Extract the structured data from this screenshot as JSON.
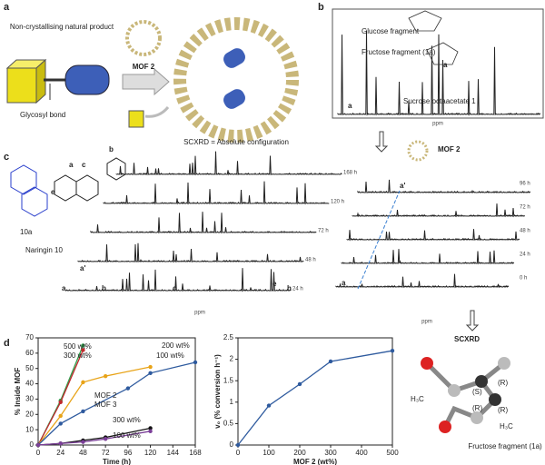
{
  "panels": {
    "a": {
      "letter": "a",
      "product": "Non-crystallising natural product",
      "mof": "MOF 2",
      "bond": "Glycosyl bond",
      "result": "SCXRD = Absolute configuration"
    },
    "b": {
      "letter": "b",
      "glucose": "Glucose fragment",
      "fructose": "Fructose fragment (1a)",
      "compound": "Sucrose octaacetate 1",
      "peak": "a",
      "ring": "a",
      "axis": "ppm"
    },
    "c": {
      "letter": "c",
      "compound": "Naringin 10",
      "fragment": "10a",
      "sites": [
        "a",
        "b",
        "c",
        "e"
      ],
      "peaks": [
        "a",
        "a'",
        "b",
        "c",
        "e",
        "h"
      ],
      "times": [
        "168 h",
        "120 h",
        "72 h",
        "48 h",
        "24 h"
      ],
      "axis": "ppm",
      "mof": "MOF 2",
      "times2": [
        "96 h",
        "72 h",
        "48 h",
        "24 h",
        "0 h"
      ],
      "peak2": "a'",
      "peak2b": "a"
    },
    "e": {
      "method": "SCXRD",
      "s": "(S)",
      "r1": "(R)",
      "r2": "(R)",
      "r3": "(R)",
      "methyl1": "H₃C",
      "methyl2": "H₃C",
      "fragment": "Fructose fragment (1a)"
    },
    "d": {
      "letter": "d"
    }
  },
  "chart_data": [
    {
      "type": "line",
      "xlabel": "Time (h)",
      "ylabel": "% Inside MOF",
      "xlim": [
        0,
        168
      ],
      "xticks": [
        0,
        24,
        48,
        72,
        96,
        120,
        144,
        168
      ],
      "ylim": [
        0,
        70
      ],
      "yticks": [
        0,
        10,
        20,
        30,
        40,
        50,
        60,
        70
      ],
      "annotations": [
        "MOF 2",
        "MOF 3"
      ],
      "series": [
        {
          "name": "500 wt%",
          "color": "#2e9e4a",
          "x": [
            0,
            24,
            48
          ],
          "values": [
            0,
            29,
            65
          ]
        },
        {
          "name": "300 wt%",
          "color": "#c0282d",
          "x": [
            0,
            24,
            48
          ],
          "values": [
            0,
            28,
            62
          ]
        },
        {
          "name": "200 wt%",
          "color": "#e8a317",
          "x": [
            0,
            24,
            48,
            72,
            120
          ],
          "values": [
            0,
            19,
            41,
            45,
            51
          ]
        },
        {
          "name": "100 wt%",
          "color": "#2e5a9e",
          "x": [
            0,
            24,
            48,
            96,
            120,
            168
          ],
          "values": [
            0,
            14,
            22,
            37,
            47,
            54
          ]
        },
        {
          "name": "300 wt%",
          "color": "#111111",
          "x": [
            0,
            24,
            48,
            72,
            120
          ],
          "values": [
            0,
            1,
            3,
            5,
            11
          ]
        },
        {
          "name": "100 wt%",
          "color": "#7b3f98",
          "x": [
            0,
            24,
            48,
            72,
            120
          ],
          "values": [
            0,
            1,
            2,
            4,
            9
          ]
        }
      ]
    },
    {
      "type": "scatter",
      "xlabel": "MOF 2 (wt%)",
      "ylabel": "v₀ (% conversion h⁻¹)",
      "xlim": [
        0,
        500
      ],
      "xticks": [
        0,
        100,
        200,
        300,
        400,
        500
      ],
      "ylim": [
        0,
        2.5
      ],
      "yticks": [
        0,
        0.5,
        1,
        1.5,
        2,
        2.5
      ],
      "color": "#2e5a9e",
      "x": [
        0,
        100,
        200,
        300,
        500
      ],
      "values": [
        0,
        0.92,
        1.42,
        1.95,
        2.2
      ]
    }
  ]
}
